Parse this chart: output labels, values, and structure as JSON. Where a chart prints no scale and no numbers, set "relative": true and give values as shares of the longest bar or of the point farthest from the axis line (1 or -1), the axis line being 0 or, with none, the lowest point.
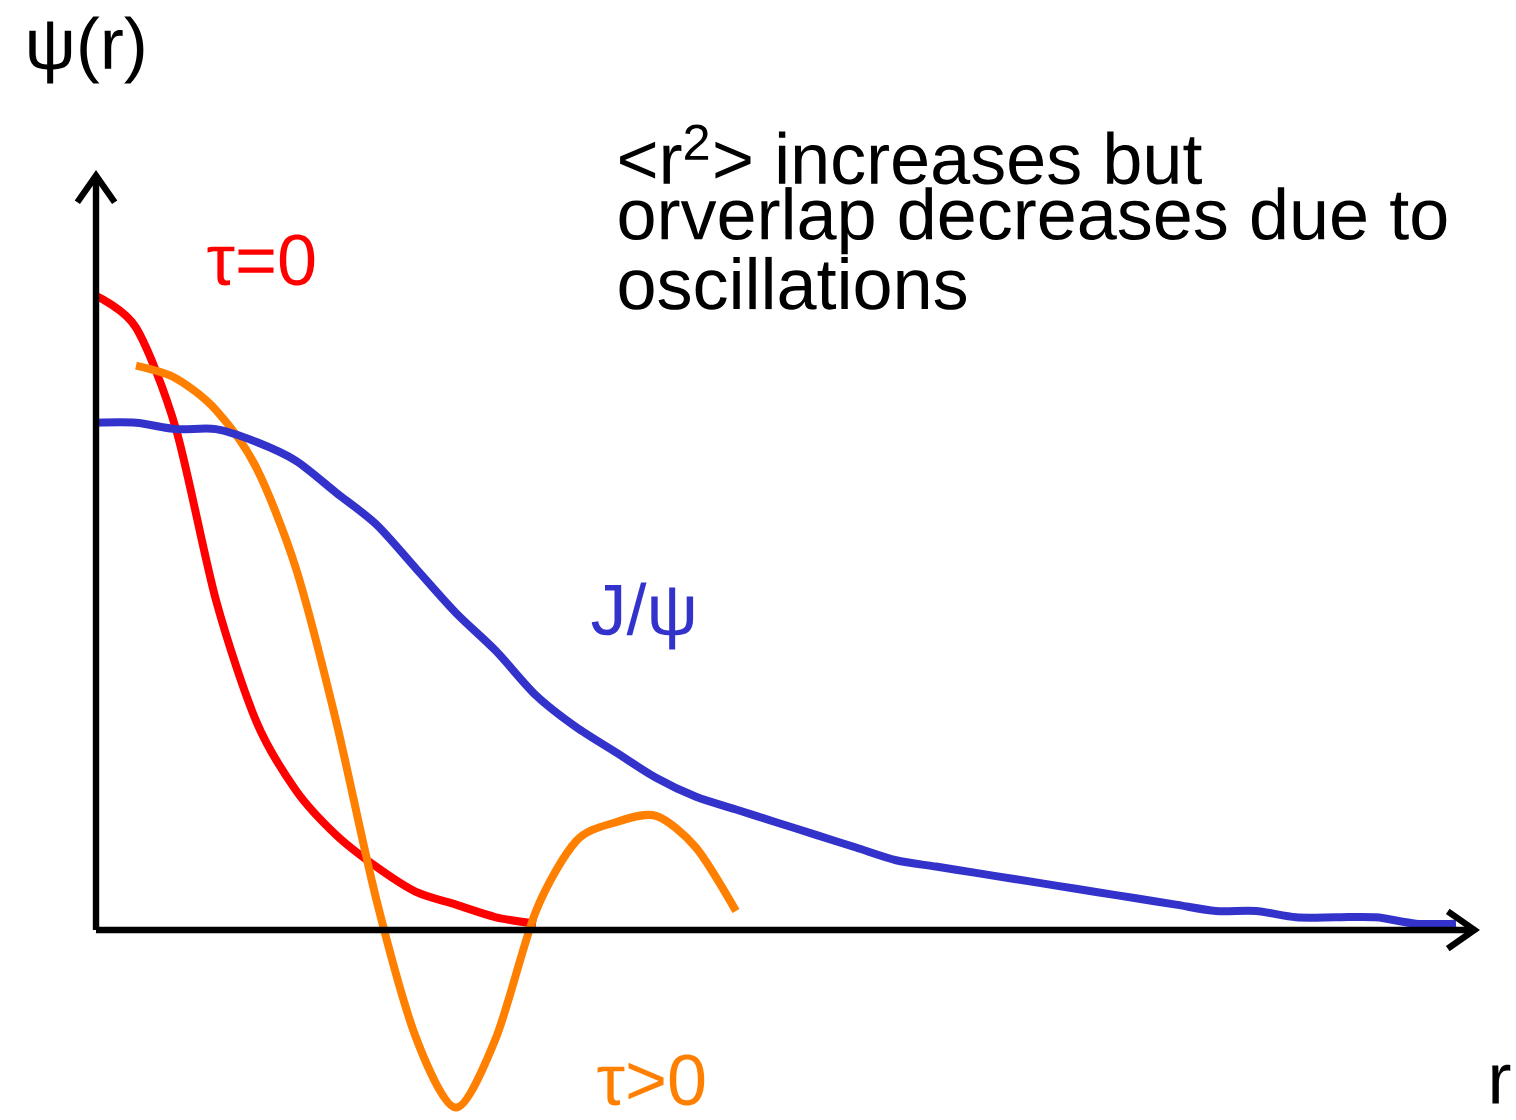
{
  "chart_data": {
    "type": "line",
    "relative": true,
    "ylabel": "ψ(r)",
    "xlabel": "r",
    "annotations": [
      "<r$^{2}$> increases but orverlap decreases due to oscillations"
    ],
    "categories": [
      null,
      null,
      null,
      null,
      null,
      null,
      null,
      null,
      null,
      null,
      null,
      null,
      null,
      null,
      null,
      null,
      null,
      null,
      null,
      null,
      null,
      null,
      null,
      null,
      null,
      null,
      null,
      null,
      null,
      null,
      null,
      null,
      null,
      null,
      null
    ],
    "series": [
      {
        "name": "τ=0",
        "color": "#ff0000",
        "values": [
          1.0,
          0.95,
          0.79,
          0.52,
          0.33,
          0.22,
          0.15,
          0.1,
          0.06,
          0.04,
          0.02,
          0.01,
          null,
          null,
          null,
          null,
          null,
          null,
          null,
          null,
          null,
          null,
          null,
          null,
          null,
          null,
          null,
          null,
          null,
          null,
          null,
          null,
          null,
          null,
          null
        ]
      },
      {
        "name": "τ>0",
        "color": "#ff8000",
        "values": [
          null,
          0.89,
          0.87,
          0.82,
          0.73,
          0.57,
          0.33,
          0.05,
          -0.17,
          -0.28,
          -0.17,
          0.03,
          0.14,
          0.17,
          0.18,
          0.13,
          0.03,
          null,
          null,
          null,
          null,
          null,
          null,
          null,
          null,
          null,
          null,
          null,
          null,
          null,
          null,
          null,
          null,
          null,
          null
        ]
      },
      {
        "name": "J/ψ",
        "color": "#3333cc",
        "values": [
          0.8,
          0.8,
          0.79,
          0.79,
          0.77,
          0.74,
          0.69,
          0.64,
          0.57,
          0.5,
          0.44,
          0.37,
          0.32,
          0.28,
          0.24,
          0.21,
          0.19,
          0.17,
          0.15,
          0.13,
          0.11,
          0.1,
          0.09,
          0.08,
          0.07,
          0.06,
          0.05,
          0.04,
          0.03,
          0.03,
          0.02,
          0.02,
          0.02,
          0.01,
          0.01
        ]
      }
    ]
  }
}
